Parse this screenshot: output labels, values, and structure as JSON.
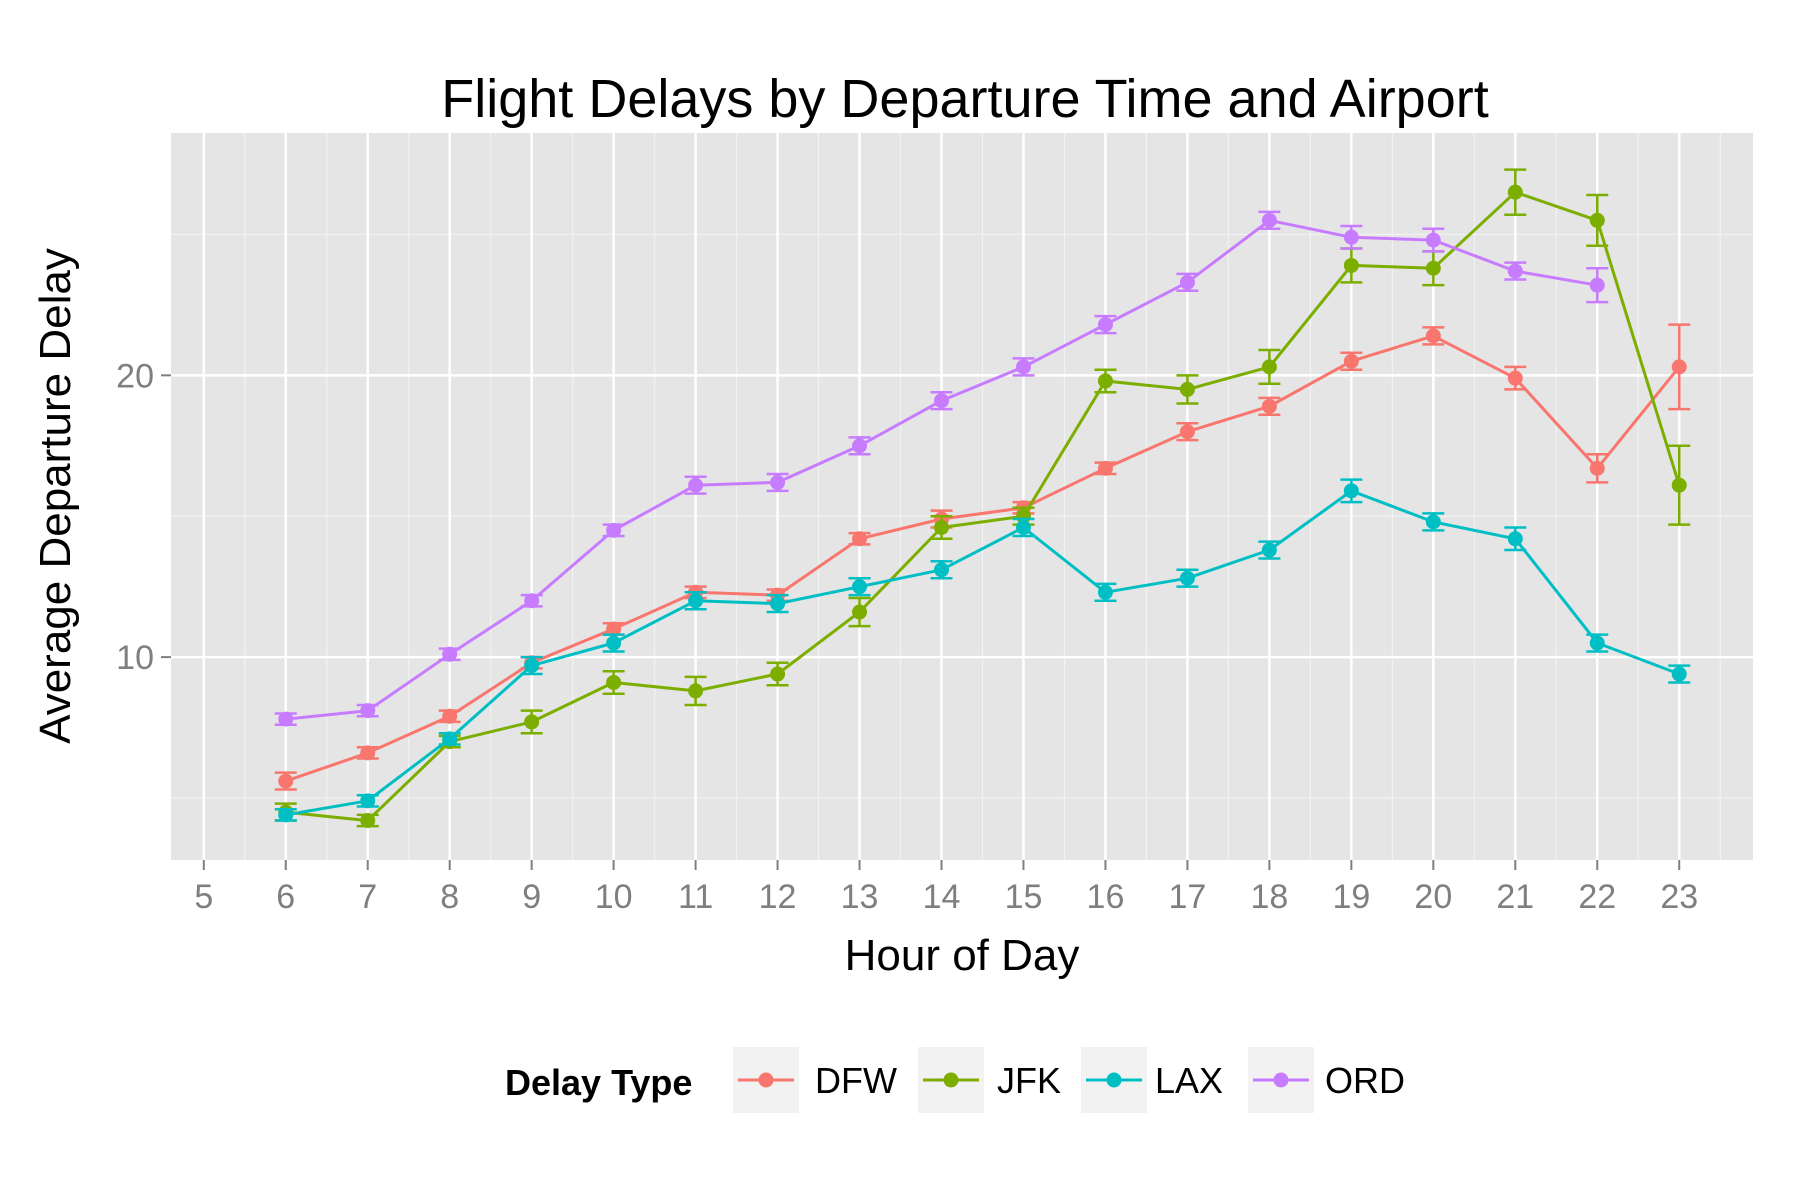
{
  "chart_data": {
    "type": "line",
    "title": "Flight Delays by Departure Time and Airport",
    "xlabel": "Hour of Day",
    "ylabel": "Average Departure Delay",
    "xlim": [
      4.6,
      23.9
    ],
    "ylim": [
      2.8,
      28.6
    ],
    "x_ticks": [
      5,
      6,
      7,
      8,
      9,
      10,
      11,
      12,
      13,
      14,
      15,
      16,
      17,
      18,
      19,
      20,
      21,
      22,
      23
    ],
    "y_ticks": [
      10,
      20
    ],
    "y_minor_ticks": [
      5,
      15,
      25
    ],
    "grid": true,
    "legend": {
      "title": "Delay Type",
      "position": "bottom"
    },
    "series": [
      {
        "name": "DFW",
        "color": "#F8766D",
        "x": [
          6,
          7,
          8,
          9,
          10,
          11,
          12,
          13,
          14,
          15,
          16,
          17,
          18,
          19,
          20,
          21,
          22,
          23
        ],
        "y": [
          5.6,
          6.6,
          7.9,
          9.8,
          11.0,
          12.3,
          12.2,
          14.2,
          14.9,
          15.3,
          16.7,
          18.0,
          18.9,
          20.5,
          21.4,
          19.9,
          16.7,
          20.3
        ],
        "err": [
          0.3,
          0.2,
          0.2,
          0.2,
          0.2,
          0.2,
          0.2,
          0.2,
          0.3,
          0.2,
          0.2,
          0.3,
          0.3,
          0.3,
          0.3,
          0.4,
          0.5,
          1.5
        ]
      },
      {
        "name": "JFK",
        "color": "#7CAE00",
        "x": [
          6,
          7,
          8,
          9,
          10,
          11,
          12,
          13,
          14,
          15,
          16,
          17,
          18,
          19,
          20,
          21,
          22,
          23
        ],
        "y": [
          4.5,
          4.2,
          7.0,
          7.7,
          9.1,
          8.8,
          9.4,
          11.6,
          14.6,
          15.0,
          19.8,
          19.5,
          20.3,
          23.9,
          23.8,
          26.5,
          25.5,
          16.1
        ],
        "err": [
          0.3,
          0.2,
          0.2,
          0.4,
          0.4,
          0.5,
          0.4,
          0.5,
          0.4,
          0.3,
          0.4,
          0.5,
          0.6,
          0.6,
          0.6,
          0.8,
          0.9,
          1.4
        ]
      },
      {
        "name": "LAX",
        "color": "#00BFC4",
        "x": [
          6,
          7,
          8,
          9,
          10,
          11,
          12,
          13,
          14,
          15,
          16,
          17,
          18,
          19,
          20,
          21,
          22,
          23
        ],
        "y": [
          4.4,
          4.9,
          7.1,
          9.7,
          10.5,
          12.0,
          11.9,
          12.5,
          13.1,
          14.6,
          12.3,
          12.8,
          13.8,
          15.9,
          14.8,
          14.2,
          10.5,
          9.4
        ],
        "err": [
          0.2,
          0.2,
          0.2,
          0.3,
          0.3,
          0.3,
          0.3,
          0.3,
          0.3,
          0.3,
          0.3,
          0.3,
          0.3,
          0.4,
          0.3,
          0.4,
          0.3,
          0.3
        ]
      },
      {
        "name": "ORD",
        "color": "#C77CFF",
        "x": [
          6,
          7,
          8,
          9,
          10,
          11,
          12,
          13,
          14,
          15,
          16,
          17,
          18,
          19,
          20,
          21,
          22
        ],
        "y": [
          7.8,
          8.1,
          10.1,
          12.0,
          14.5,
          16.1,
          16.2,
          17.5,
          19.1,
          20.3,
          21.8,
          23.3,
          25.5,
          24.9,
          24.8,
          23.7,
          23.2
        ],
        "err": [
          0.2,
          0.2,
          0.2,
          0.2,
          0.2,
          0.3,
          0.3,
          0.3,
          0.3,
          0.3,
          0.3,
          0.3,
          0.3,
          0.4,
          0.4,
          0.3,
          0.6
        ]
      }
    ]
  },
  "colors": {
    "panel_background": "#E5E5E5",
    "major_grid": "#FFFFFF",
    "minor_grid": "#F2F2F2",
    "tick_label": "#7F7F7F",
    "legend_key_background": "#F2F2F2"
  }
}
